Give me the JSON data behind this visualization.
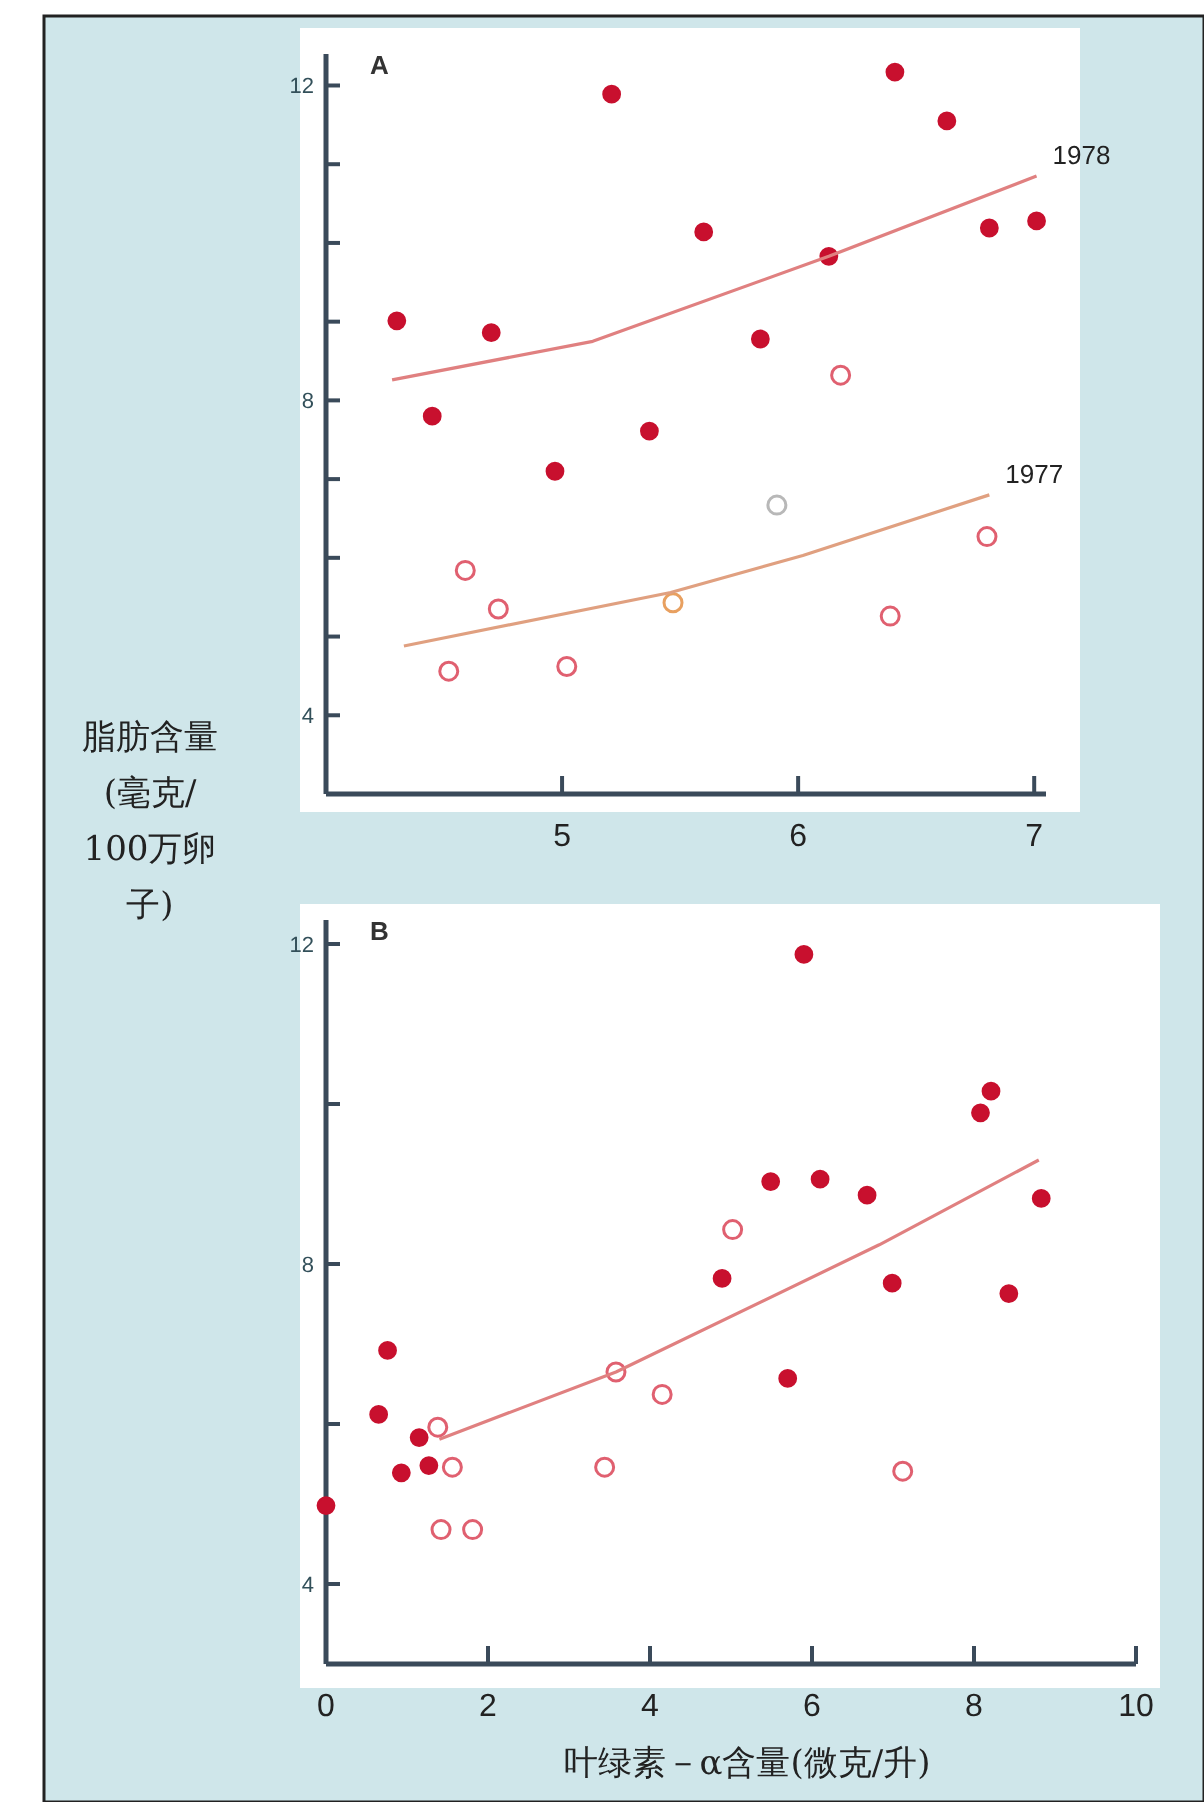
{
  "chart_data": [
    {
      "type": "scatter",
      "ylabel": "脂肪含量(毫克/100万卵子)",
      "annotations": [
        "A"
      ],
      "xlim": [
        4,
        7.05
      ],
      "xticks": [
        5,
        6,
        7
      ],
      "ylim": [
        3,
        12.4
      ],
      "yticks": [
        4,
        {
          "value": 5,
          "label": null
        },
        {
          "value": 6,
          "label": null
        },
        {
          "value": 7,
          "label": null
        },
        8,
        {
          "value": 9,
          "label": null
        },
        {
          "value": 10,
          "label": null
        },
        {
          "value": 11,
          "label": null
        },
        12
      ],
      "series": [
        {
          "color": "#c8102e",
          "x": [
            4.3,
            4.45,
            4.7,
            4.97,
            5.21,
            5.37,
            5.6,
            5.84,
            6.13,
            6.41,
            6.63,
            6.81,
            7.01
          ],
          "values": [
            9.01,
            7.8,
            8.86,
            7.1,
            11.89,
            7.61,
            10.14,
            8.78,
            9.83,
            12.17,
            11.55,
            10.19,
            10.28
          ]
        },
        {
          "colors": [
            "#e06070",
            "#e06070",
            "#e06070",
            "#e06070",
            "#e8a060",
            "#b8b8b8",
            "#e06070",
            "#e06070",
            "#e06070"
          ],
          "x": [
            4.59,
            4.73,
            4.52,
            5.02,
            5.47,
            5.91,
            6.18,
            6.39,
            6.8
          ],
          "values": [
            5.84,
            5.35,
            4.56,
            4.62,
            5.43,
            6.67,
            8.32,
            5.26,
            6.27
          ]
        },
        {
          "type": "line",
          "name": "1978",
          "color": "#e08080",
          "x": [
            4.28,
            5.13,
            6.13,
            7.01
          ],
          "values": [
            8.26,
            8.75,
            9.83,
            10.85
          ]
        },
        {
          "type": "line",
          "name": "1977",
          "color": "#e0a080",
          "x": [
            4.33,
            5.46,
            6.02,
            6.81
          ],
          "values": [
            4.88,
            5.56,
            6.03,
            6.8
          ]
        }
      ]
    },
    {
      "type": "scatter",
      "xlabel": "叶绿素－α含量(微克/升)",
      "annotations": [
        "B"
      ],
      "xlim": [
        0,
        10
      ],
      "xticks": [
        0,
        2,
        4,
        6,
        8,
        10
      ],
      "ylim": [
        3,
        12.3
      ],
      "yticks": [
        4,
        {
          "value": 6,
          "label": null
        },
        8,
        {
          "value": 10,
          "label": null
        },
        12
      ],
      "series": [
        {
          "color": "#c8102e",
          "x": [
            5.9,
            8.21,
            8.08,
            5.49,
            6.1,
            6.68,
            8.83,
            4.89,
            6.99,
            8.43,
            5.7,
            0.76,
            0.65,
            1.15,
            0.93,
            1.27,
            0.0
          ],
          "values": [
            11.87,
            10.16,
            9.89,
            9.03,
            9.06,
            8.86,
            8.82,
            7.82,
            7.76,
            7.63,
            6.57,
            6.92,
            6.12,
            5.83,
            5.39,
            5.48,
            4.98
          ]
        },
        {
          "colors": [
            "#e06070",
            "#e06070",
            "#e06070",
            "#e06070",
            "#e06070",
            "#e06070",
            "#e06070",
            "#e06070",
            "#e06070"
          ],
          "x": [
            5.02,
            3.58,
            4.15,
            1.38,
            1.56,
            3.44,
            7.12,
            1.42,
            1.81
          ],
          "values": [
            8.43,
            6.65,
            6.37,
            5.96,
            5.46,
            5.46,
            5.41,
            4.68,
            4.68
          ]
        },
        {
          "type": "line",
          "color": "#e08080",
          "x": [
            1.4,
            3.58,
            6.83,
            8.8
          ],
          "values": [
            5.81,
            6.65,
            8.24,
            9.3
          ]
        }
      ]
    }
  ]
}
